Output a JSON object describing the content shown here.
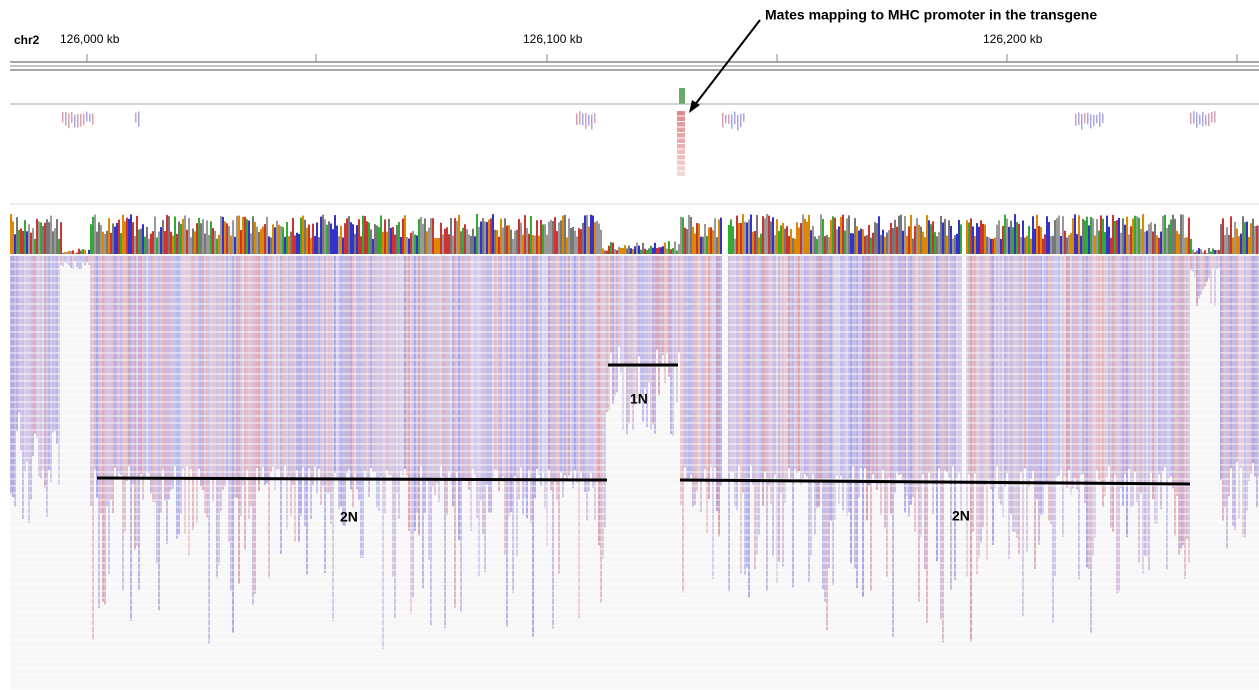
{
  "ruler": {
    "chromosome": "chr2",
    "tick_labels": [
      "126,000 kb",
      "126,100 kb",
      "126,200 kb"
    ]
  },
  "annotations": {
    "arrow_label": "Mates mapping to MHC promoter in the transgene",
    "copy_labels": [
      "1N",
      "2N",
      "2N"
    ]
  }
}
